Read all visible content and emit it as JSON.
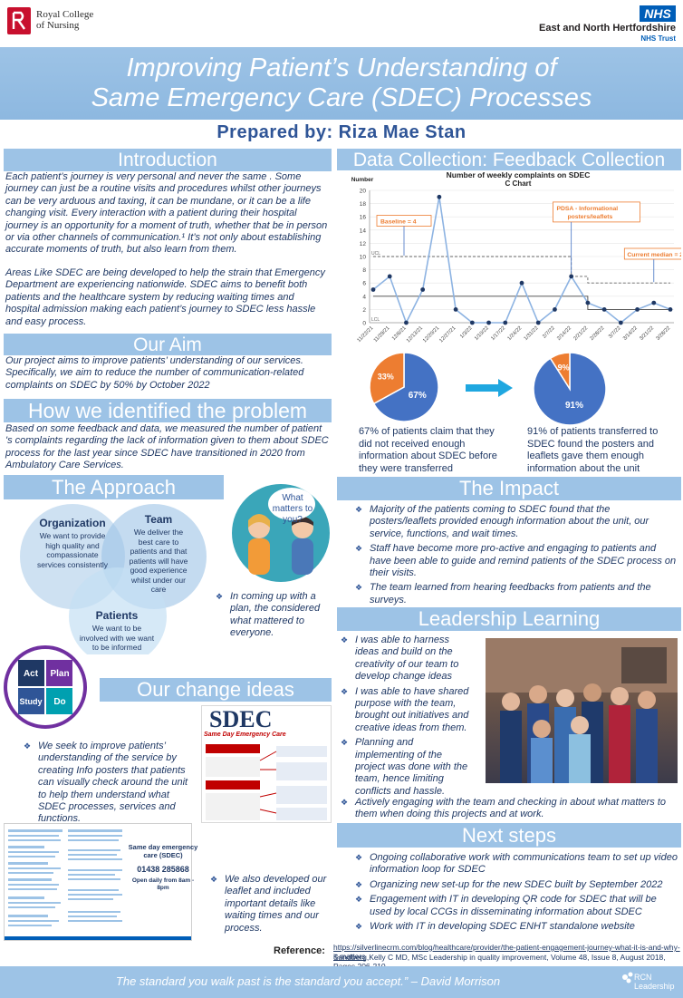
{
  "header": {
    "rcn_logo": "Royal College of Nursing",
    "rcn_line1": "Royal College",
    "rcn_line2": "of Nursing",
    "nhs_badge": "NHS",
    "trust_name": "East and North Hertfordshire",
    "trust_sub": "NHS Trust"
  },
  "title": {
    "line1": "Improving Patient’s Understanding of",
    "line2": "Same Emergency Care  (SDEC) Processes",
    "author": "Prepared by: Riza Mae Stan"
  },
  "introduction": {
    "heading": "Introduction",
    "para1": "Each patient’s journey is very personal and never the same . Some journey can just be a routine visits and procedures whilst other journeys can be very arduous and taxing, it can be mundane, or it can be a life changing visit. Every interaction with a patient during their hospital journey is an opportunity for a moment of truth, whether that be in person or via other channels of communication.¹  It’s not only about establishing accurate moments of truth, but also learn from them.",
    "para2": "Areas Like SDEC are being developed to help the strain that Emergency Department are experiencing nationwide. SDEC aims to benefit both patients and the healthcare system by reducing waiting times and hospital admission making each patient’s journey to SDEC less hassle and easy process."
  },
  "aim": {
    "heading": "Our Aim",
    "text": "Our project aims to improve patients’ understanding of our services. Specifically, we aim to reduce the number of communication-related complaints on SDEC by 50% by October 2022"
  },
  "how_identified": {
    "heading": "How we identified the problem",
    "text": "Based on some feedback and data, we measured the number of patient 's complaints regarding the lack of information given to them about SDEC process for the last year since SDEC have transitioned in 2020 from Ambulatory Care Services."
  },
  "approach": {
    "heading": "The Approach",
    "organization_title": "Organization",
    "organization_text": "We want to provide high quality and compassionate services consistently",
    "team_title": "Team",
    "team_text": "We deliver the best care to patients and that patients will have good experience whilst under our care",
    "patients_title": "Patients",
    "patients_text": "We want to be involved with we want to be informed",
    "bubble_text": "What matters to you?",
    "note": "In coming up with a plan, the considered what mattered to everyone."
  },
  "pdsa": {
    "act": "Act",
    "plan": "Plan",
    "study": "Study",
    "do": "Do"
  },
  "change_ideas": {
    "heading": "Our change ideas",
    "text": "We seek to improve patients’ understanding of the service by creating Info posters that patients can visually check around the unit to help them understand what SDEC processes, services and functions.",
    "leaflet_title": "SDEC",
    "leaflet_subtitle": "Same Day Emergency Care",
    "card_title": "Same day emergency care (SDEC)",
    "card_phone": "01438 285868",
    "card_hours": "Open daily from 8am - 8pm",
    "leaflet_note": "We also developed our leaflet and included important details like waiting times and our process."
  },
  "data_collection": {
    "heading": "Data Collection: Feedback Collection",
    "left_pie_text": "67% of patients claim that they did not received enough information about SDEC before they were transferred",
    "right_pie_text": "91% of patients transferred to SDEC found the posters and leaflets gave them enough information about the unit"
  },
  "chart_data": [
    {
      "type": "line",
      "title": "Number of weekly complaints on SDEC",
      "subtitle": "C Chart",
      "ylabel": "Number",
      "x": [
        "11/22/21",
        "11/29/21",
        "12/6/21",
        "12/13/21",
        "12/20/21",
        "12/27/21",
        "1/3/22",
        "1/10/22",
        "1/17/22",
        "1/24/22",
        "1/31/22",
        "2/7/22",
        "2/14/22",
        "2/21/22",
        "2/28/22",
        "3/7/22",
        "3/14/22",
        "3/21/22",
        "3/28/22"
      ],
      "xticks": [
        "11/22/21",
        "11/29/21",
        "12/6/21",
        "12/13/21",
        "12/20/21",
        "12/27/21",
        "1/3/22",
        "1/10/22",
        "1/17/22",
        "1/24/22",
        "1/31/22",
        "2/7/22",
        "2/14/22",
        "2/21/22",
        "2/28/22",
        "3/7/22",
        "3/14/22",
        "3/21/22",
        "3/28/22"
      ],
      "series": [
        {
          "values": [
            5,
            7,
            0,
            5,
            19,
            2,
            0,
            0,
            0,
            6,
            0,
            2,
            7,
            3,
            2,
            0,
            2,
            3,
            2
          ]
        }
      ],
      "center_line": [
        4,
        4,
        4,
        4,
        4,
        4,
        4,
        4,
        4,
        4,
        4,
        4,
        4,
        2,
        2,
        2,
        2,
        2,
        2
      ],
      "ucl": [
        10,
        10,
        10,
        10,
        10,
        10,
        10,
        10,
        10,
        10,
        10,
        10,
        7,
        6,
        6,
        6,
        6,
        6,
        6
      ],
      "lcl_label": "LCL",
      "ucl_label": "UCL",
      "ylim": [
        0,
        20
      ],
      "yticks": [
        0,
        2,
        4,
        6,
        8,
        10,
        12,
        14,
        16,
        18,
        20
      ],
      "annotations": [
        "Baseline = 4",
        "PDSA - Informational posters/leaflets",
        "Current median = 2"
      ]
    },
    {
      "type": "pie",
      "labels": [
        "67%",
        "33%"
      ],
      "values": [
        67,
        33
      ],
      "colors": [
        "#4472c4",
        "#ed7d31"
      ]
    },
    {
      "type": "pie",
      "labels": [
        "91%",
        "9%"
      ],
      "values": [
        91,
        9
      ],
      "colors": [
        "#4472c4",
        "#ed7d31"
      ]
    }
  ],
  "impact": {
    "heading": "The Impact",
    "items": [
      "Majority of the patients coming to SDEC found that the posters/leaflets provided enough information about the unit, our service, functions, and wait times.",
      "Staff have become more pro-active and engaging to patients and have been able to guide and remind patients of the SDEC process on their visits.",
      "The team learned from hearing feedbacks from patients and the surveys."
    ]
  },
  "leadership": {
    "heading": "Leadership Learning",
    "items": [
      "I was able to harness ideas and build on the creativity of our team to develop change ideas",
      "I was able to have shared purpose with the team, brought out initiatives and creative ideas from them.",
      "Planning and implementing of the project was done with the team, hence limiting conflicts and hassle."
    ],
    "last_item": "Actively engaging with the team and checking in about what matters to them when doing this projects and at work."
  },
  "next_steps": {
    "heading": "Next steps",
    "items": [
      "Ongoing collaborative work with communications team to set up video information loop for SDEC",
      "Organizing new set-up for the new SDEC built by September 2022",
      "Engagement with IT in developing QR code for SDEC that will be used by local CCGs in disseminating information about SDEC",
      "Work with IT in  developing SDEC ENHT standalone website"
    ]
  },
  "reference": {
    "label": "Reference:",
    "url": "https://silverlinecrm.com/blog/healthcare/provider/the-patient-engagement-journey-what-it-is-and-why-it-matters",
    "citation": "Sandberg,Kelly C MD, MSc Leadership in quality improvement, Volume 48, Issue 8, August 2018, Pages 206-210"
  },
  "footer": {
    "quote": "The standard you walk past is the standard you accept.” – David Morrison",
    "rcn_leadership_line1": "RCN",
    "rcn_leadership_line2": "Leadership"
  },
  "colors": {
    "band": "#9dc3e6",
    "navy": "#1f3864",
    "pie_blue": "#4472c4",
    "pie_orange": "#ed7d31",
    "arrow": "#1fa7e0"
  }
}
